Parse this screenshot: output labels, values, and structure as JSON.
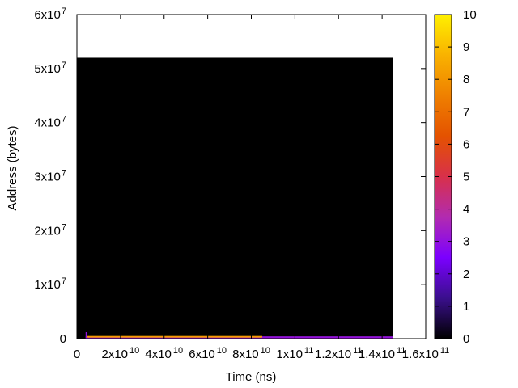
{
  "chart_data": {
    "type": "heatmap",
    "xlabel": "Time (ns)",
    "ylabel": "Address (bytes)",
    "xlim": [
      0,
      160000000000
    ],
    "ylim": [
      0,
      60000000
    ],
    "x_ticks": [
      {
        "value": 0,
        "mantissa": "0",
        "exponent": ""
      },
      {
        "value": 20000000000,
        "mantissa": "2x10",
        "exponent": "10"
      },
      {
        "value": 40000000000,
        "mantissa": "4x10",
        "exponent": "10"
      },
      {
        "value": 60000000000,
        "mantissa": "6x10",
        "exponent": "10"
      },
      {
        "value": 80000000000,
        "mantissa": "8x10",
        "exponent": "10"
      },
      {
        "value": 100000000000,
        "mantissa": "1x10",
        "exponent": "11"
      },
      {
        "value": 120000000000,
        "mantissa": "1.2x10",
        "exponent": "11"
      },
      {
        "value": 140000000000,
        "mantissa": "1.4x10",
        "exponent": "11"
      },
      {
        "value": 160000000000,
        "mantissa": "1.6x10",
        "exponent": "11"
      }
    ],
    "y_ticks": [
      {
        "value": 0,
        "mantissa": "0",
        "exponent": ""
      },
      {
        "value": 10000000,
        "mantissa": "1x10",
        "exponent": "7"
      },
      {
        "value": 20000000,
        "mantissa": "2x10",
        "exponent": "7"
      },
      {
        "value": 30000000,
        "mantissa": "3x10",
        "exponent": "7"
      },
      {
        "value": 40000000,
        "mantissa": "4x10",
        "exponent": "7"
      },
      {
        "value": 50000000,
        "mantissa": "5x10",
        "exponent": "7"
      },
      {
        "value": 60000000,
        "mantissa": "6x10",
        "exponent": "7"
      }
    ],
    "heatmap_region": {
      "x": [
        0,
        145000000000
      ],
      "y": [
        0,
        52000000
      ],
      "value": 0
    },
    "accent_strips": [
      {
        "x": [
          4000000000,
          145000000000
        ],
        "y": [
          0,
          350000
        ],
        "value": 3.2
      },
      {
        "x": [
          4500000000,
          85000000000
        ],
        "y": [
          120000,
          420000
        ],
        "value": 8.2
      },
      {
        "x": [
          85000000000,
          145000000000
        ],
        "y": [
          80000,
          260000
        ],
        "value": 3.0
      }
    ],
    "colorbar": {
      "range": [
        0,
        10
      ],
      "ticks": [
        0,
        1,
        2,
        3,
        4,
        5,
        6,
        7,
        8,
        9,
        10
      ],
      "tick_labels": [
        "0",
        "1",
        "2",
        "3",
        "4",
        "5",
        "6",
        "7",
        "8",
        "9",
        "10"
      ],
      "palette": [
        "#000000",
        "#3a0f8c",
        "#7b00ff",
        "#b22bb0",
        "#d8304a",
        "#e45200",
        "#ef8000",
        "#f9b200",
        "#fff000"
      ]
    }
  }
}
